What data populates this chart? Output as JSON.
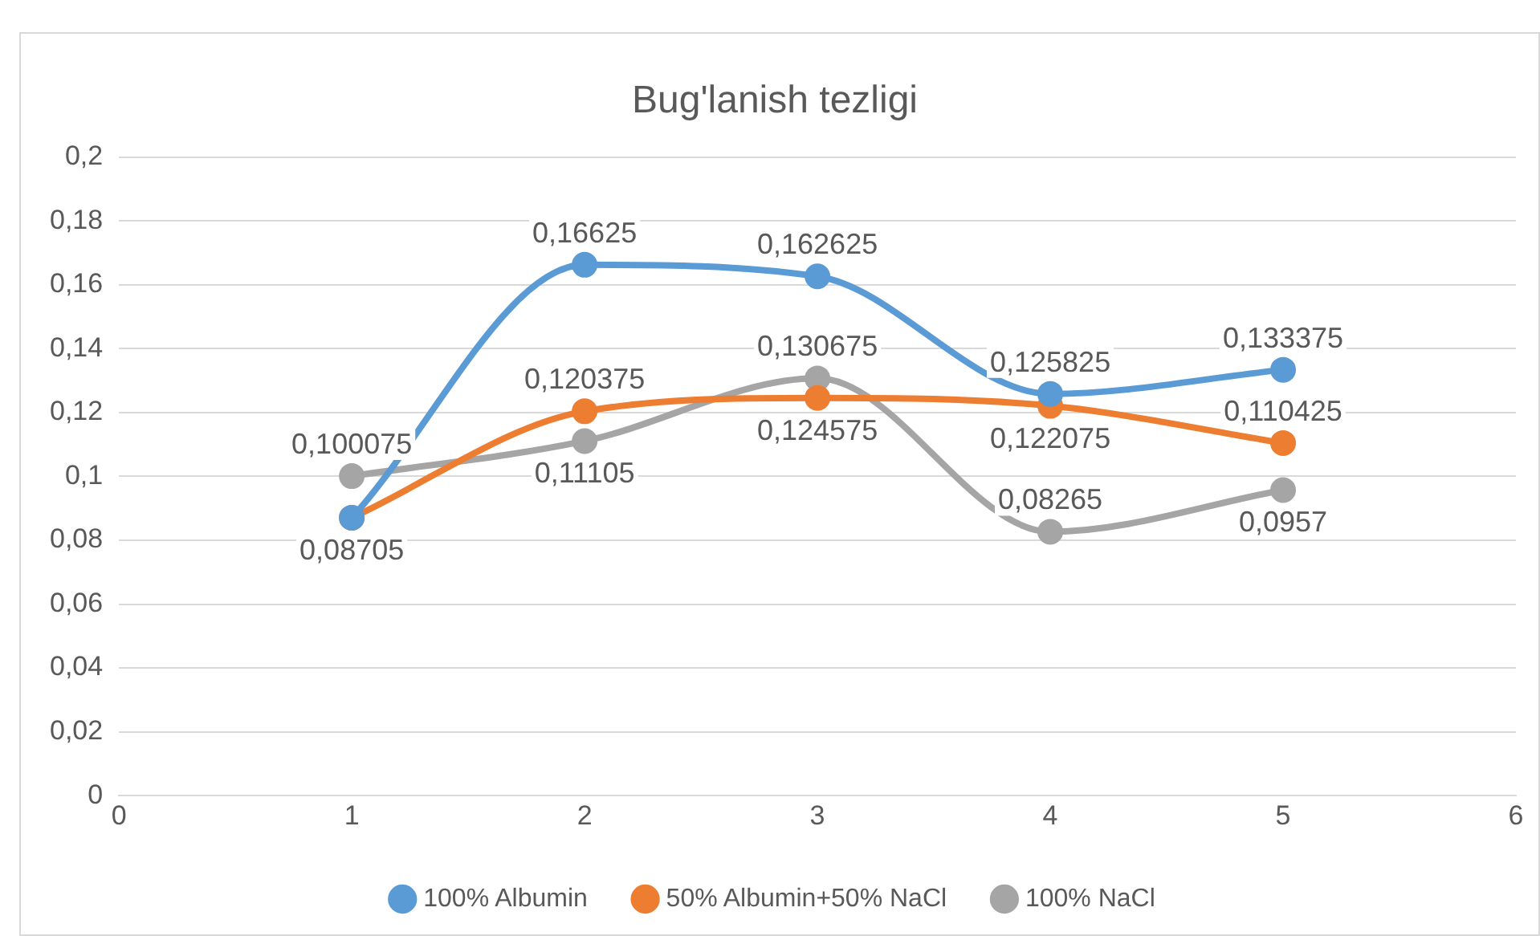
{
  "chart_data": {
    "type": "line",
    "title": "Bug'lanish tezligi",
    "x": [
      1,
      2,
      3,
      4,
      5
    ],
    "series": [
      {
        "name": "100% Albumin",
        "color": "#5b9bd5",
        "values": [
          0.08705,
          0.16625,
          0.162625,
          0.125825,
          0.133375
        ],
        "value_labels": [
          null,
          "0,16625",
          "0,162625",
          "0,125825",
          "0,133375"
        ]
      },
      {
        "name": "50% Albumin+50% NaCl",
        "color": "#ed7d31",
        "values": [
          0.08705,
          0.120375,
          0.124575,
          0.122075,
          0.110425
        ],
        "value_labels": [
          "0,08705",
          "0,120375",
          "0,124575",
          "0,122075",
          "0,110425"
        ]
      },
      {
        "name": "100% NaCl",
        "color": "#a5a5a5",
        "values": [
          0.100075,
          0.11105,
          0.130675,
          0.08265,
          0.0957
        ],
        "value_labels": [
          "0,100075",
          "0,11105",
          "0,130675",
          "0,08265",
          "0,0957"
        ]
      }
    ],
    "xlim": [
      0,
      6
    ],
    "xticks": [
      0,
      1,
      2,
      3,
      4,
      5,
      6
    ],
    "ylim": [
      0,
      0.2
    ],
    "yticks": [
      0,
      {
        "value": 0.02,
        "label": "0,02"
      },
      {
        "value": 0.04,
        "label": "0,04"
      },
      {
        "value": 0.06,
        "label": "0,06"
      },
      {
        "value": 0.08,
        "label": "0,08"
      },
      {
        "value": 0.1,
        "label": "0,1"
      },
      {
        "value": 0.12,
        "label": "0,12"
      },
      {
        "value": 0.14,
        "label": "0,14"
      },
      {
        "value": 0.16,
        "label": "0,16"
      },
      {
        "value": 0.18,
        "label": "0,18"
      },
      {
        "value": 0.2,
        "label": "0,2"
      }
    ],
    "grid": "y",
    "legend": "bottom",
    "marker": "circle",
    "line_style": "solid"
  }
}
